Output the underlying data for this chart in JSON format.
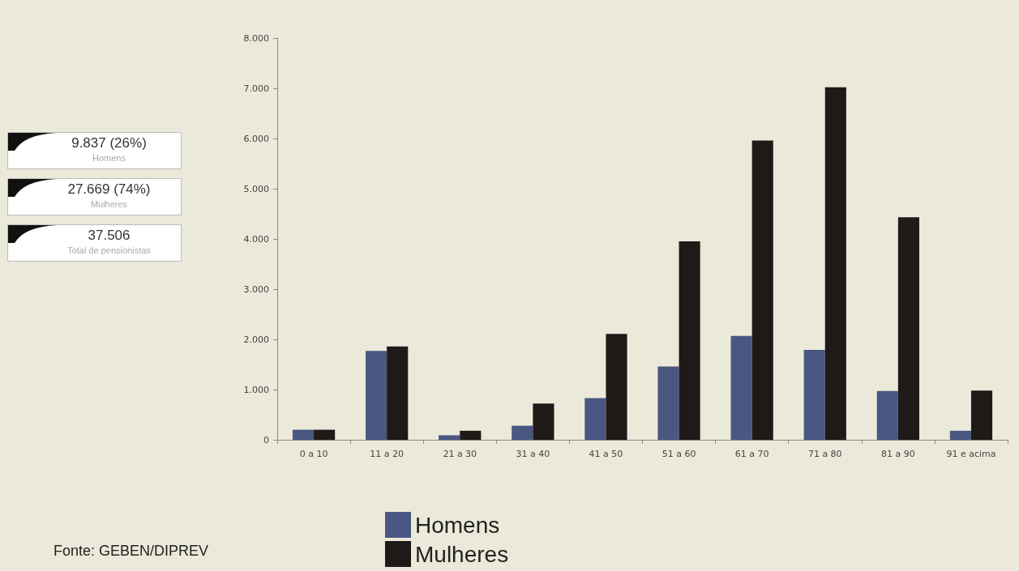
{
  "chart_data": {
    "type": "bar",
    "categories": [
      "0 a 10",
      "11 a 20",
      "21 a 30",
      "31 a 40",
      "41 a 50",
      "51 a 60",
      "61 a 70",
      "71 a 80",
      "81 a 90",
      "91 e acima"
    ],
    "series": [
      {
        "name": "Homens",
        "color": "#4a5782",
        "values": [
          200,
          1770,
          90,
          280,
          830,
          1460,
          2070,
          1790,
          970,
          180
        ]
      },
      {
        "name": "Mulheres",
        "color": "#1f1a17",
        "values": [
          200,
          1860,
          180,
          720,
          2110,
          3950,
          5960,
          7020,
          4430,
          980
        ]
      }
    ],
    "ylim": [
      0,
      8000
    ],
    "yticks": [
      {
        "value": 0,
        "label": "0"
      },
      {
        "value": 1000,
        "label": "1.000"
      },
      {
        "value": 2000,
        "label": "2.000"
      },
      {
        "value": 3000,
        "label": "3.000"
      },
      {
        "value": 4000,
        "label": "4.000"
      },
      {
        "value": 5000,
        "label": "5.000"
      },
      {
        "value": 6000,
        "label": "6.000"
      },
      {
        "value": 7000,
        "label": "7.000"
      },
      {
        "value": 8000,
        "label": "8.000"
      }
    ],
    "grid": false,
    "legend": "bottom",
    "annotations": [
      "9.837 (26%)",
      "Homens",
      "27.669 (74%)",
      "Mulheres",
      "37.506",
      "Total de pensionistas",
      "Fonte: GEBEN/DIPREV"
    ]
  }
}
